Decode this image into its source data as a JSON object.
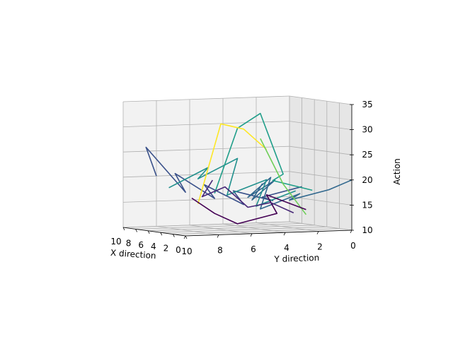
{
  "chart_data": {
    "type": "line",
    "projection": "3d",
    "colormap": "viridis",
    "grid": true,
    "x_axis": {
      "label": "X direction",
      "ticks": [
        "10",
        "8",
        "6",
        "4",
        "2",
        "0"
      ],
      "range": [
        0,
        10
      ]
    },
    "y_axis": {
      "label": "Y direction",
      "ticks": [
        "10",
        "8",
        "6",
        "4",
        "2",
        "0"
      ],
      "range": [
        0,
        10
      ]
    },
    "z_axis": {
      "label": "Action",
      "ticks": [
        "10",
        "15",
        "20",
        "25",
        "30",
        "35"
      ],
      "range": [
        10,
        35
      ]
    },
    "series": [
      {
        "color": "#3b528b",
        "points": [
          [
            10,
            8,
            20
          ],
          [
            9,
            9,
            26
          ],
          [
            8,
            7,
            17
          ],
          [
            7,
            8,
            21
          ],
          [
            6,
            6,
            16
          ],
          [
            5,
            7,
            19
          ],
          [
            4,
            5,
            15
          ],
          [
            3,
            6,
            18
          ],
          [
            2,
            4,
            16
          ],
          [
            1,
            5,
            17
          ],
          [
            0,
            3,
            19
          ]
        ]
      },
      {
        "color": "#31688e",
        "points": [
          [
            9,
            2,
            18
          ],
          [
            8,
            3,
            15
          ],
          [
            7,
            2,
            19
          ],
          [
            6,
            4,
            16
          ],
          [
            5,
            3,
            20
          ],
          [
            4,
            4,
            14
          ],
          [
            3,
            2,
            17
          ],
          [
            2,
            3,
            16
          ],
          [
            1,
            1,
            18
          ],
          [
            0,
            0,
            20
          ]
        ]
      },
      {
        "color": "#21908d",
        "points": [
          [
            8,
            8,
            18
          ],
          [
            7,
            6,
            22
          ],
          [
            6,
            7,
            20
          ],
          [
            5,
            5,
            24
          ],
          [
            4,
            6,
            17
          ],
          [
            3,
            4,
            20
          ],
          [
            2,
            5,
            15
          ],
          [
            1,
            3,
            18
          ]
        ]
      },
      {
        "color": "#1f9e89",
        "points": [
          [
            6,
            6,
            17
          ],
          [
            5,
            5,
            30
          ],
          [
            4,
            4,
            33
          ],
          [
            3,
            3,
            21
          ],
          [
            2,
            4,
            20
          ],
          [
            1,
            2,
            18
          ]
        ]
      },
      {
        "color": "#fde725",
        "points": [
          [
            6,
            7,
            15
          ],
          [
            5,
            6,
            31
          ],
          [
            4,
            5,
            30
          ],
          [
            3,
            4,
            26
          ]
        ]
      },
      {
        "color": "#6ece58",
        "points": [
          [
            4,
            4,
            28
          ],
          [
            3,
            3,
            19
          ],
          [
            2,
            2,
            13
          ]
        ]
      },
      {
        "color": "#440154",
        "points": [
          [
            7,
            7,
            16
          ],
          [
            6,
            6,
            13
          ],
          [
            5,
            5,
            11
          ],
          [
            4,
            3,
            13
          ],
          [
            3,
            4,
            17
          ],
          [
            2,
            2,
            14
          ]
        ]
      },
      {
        "color": "#482878",
        "points": [
          [
            9,
            5,
            19
          ],
          [
            8,
            6,
            16
          ],
          [
            7,
            5,
            18
          ],
          [
            6,
            4,
            14
          ],
          [
            5,
            3,
            15
          ],
          [
            4,
            2,
            13
          ]
        ]
      }
    ]
  }
}
